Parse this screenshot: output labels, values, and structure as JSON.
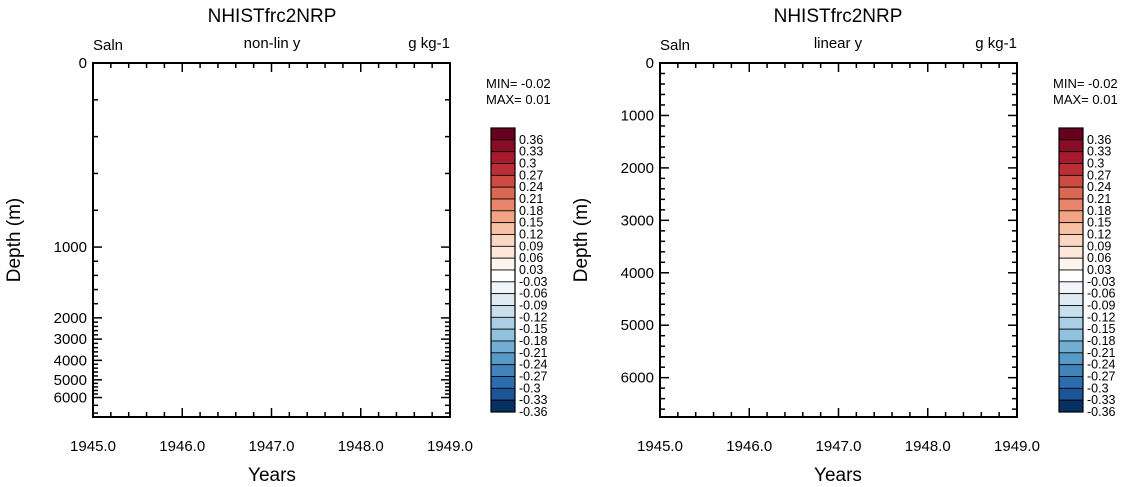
{
  "chart_data": [
    {
      "type": "heatmap",
      "title": "NHISTfrc2NRP",
      "left_label": "Saln",
      "center_label": "non-lin y",
      "right_label": "g kg-1",
      "xlabel": "Years",
      "ylabel": "Depth (m)",
      "xlim": [
        1945.0,
        1949.0
      ],
      "x_ticks": [
        "1945.0",
        "1946.0",
        "1947.0",
        "1948.0",
        "1949.0"
      ],
      "y_scale": "non-linear",
      "ylim": [
        0,
        6500
      ],
      "y_ticks": [
        "0",
        "1000",
        "2000",
        "3000",
        "4000",
        "5000",
        "6000"
      ],
      "min_label": "MIN= -0.02",
      "max_label": "MAX=  0.01"
    },
    {
      "type": "heatmap",
      "title": "NHISTfrc2NRP",
      "left_label": "Saln",
      "center_label": "linear y",
      "right_label": "g kg-1",
      "xlabel": "Years",
      "ylabel": "Depth (m)",
      "xlim": [
        1945.0,
        1949.0
      ],
      "x_ticks": [
        "1945.0",
        "1946.0",
        "1947.0",
        "1948.0",
        "1949.0"
      ],
      "y_scale": "linear",
      "ylim": [
        0,
        6750
      ],
      "y_ticks": [
        "0",
        "1000",
        "2000",
        "3000",
        "4000",
        "5000",
        "6000"
      ],
      "min_label": "MIN= -0.02",
      "max_label": "MAX=  0.01"
    }
  ],
  "colorbar": {
    "labels": [
      "0.36",
      "0.33",
      "0.3",
      "0.27",
      "0.24",
      "0.21",
      "0.18",
      "0.15",
      "0.12",
      "0.09",
      "0.06",
      "0.03",
      "-0.03",
      "-0.06",
      "-0.09",
      "-0.12",
      "-0.15",
      "-0.18",
      "-0.21",
      "-0.24",
      "-0.27",
      "-0.3",
      "-0.33",
      "-0.36"
    ],
    "colors": [
      "#67001f",
      "#8a0b25",
      "#a8192d",
      "#bc2e36",
      "#cc4c44",
      "#da6853",
      "#e8856a",
      "#f3a482",
      "#f8c1a4",
      "#fbd8c3",
      "#fce7da",
      "#fdf4ee",
      "#ffffff",
      "#f0f6fa",
      "#deebf3",
      "#c8dfec",
      "#abcfe5",
      "#8fc2de",
      "#72aed3",
      "#5799c7",
      "#3f83ba",
      "#2c6ead",
      "#1b5596",
      "#053061"
    ]
  }
}
